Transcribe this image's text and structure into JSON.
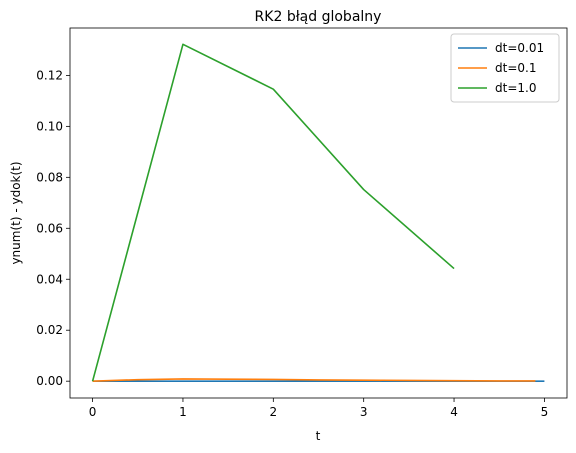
{
  "chart_data": {
    "type": "line",
    "title": "RK2 błąd globalny",
    "xlabel": "t",
    "ylabel": "ynum(t) - ydok(t)",
    "xlim": [
      -0.25,
      5.25
    ],
    "ylim": [
      -0.0066,
      0.1386
    ],
    "x_ticks": [
      0,
      1,
      2,
      3,
      4,
      5
    ],
    "x_tick_labels": [
      "0",
      "1",
      "2",
      "3",
      "4",
      "5"
    ],
    "y_ticks": [
      0.0,
      0.02,
      0.04,
      0.06,
      0.08,
      0.1,
      0.12
    ],
    "y_tick_labels": [
      "0.00",
      "0.02",
      "0.04",
      "0.06",
      "0.08",
      "0.10",
      "0.12"
    ],
    "grid": false,
    "legend_position": "upper right",
    "series": [
      {
        "name": "dt=0.01",
        "color": "#1f77b4",
        "x": [
          0,
          0.5,
          1,
          1.5,
          2,
          2.5,
          3,
          3.5,
          4,
          4.5,
          5
        ],
        "y": [
          0,
          5e-06,
          8e-06,
          8e-06,
          7e-06,
          6e-06,
          4e-06,
          3e-06,
          2e-06,
          2e-06,
          1e-06
        ]
      },
      {
        "name": "dt=0.1",
        "color": "#ff7f0e",
        "x": [
          0,
          0.5,
          1,
          1.5,
          2,
          2.5,
          3,
          3.5,
          4,
          4.5,
          4.9
        ],
        "y": [
          0,
          0.0006,
          0.0009,
          0.0008,
          0.0007,
          0.0005,
          0.0004,
          0.0003,
          0.0002,
          0.0001,
          0.0001
        ]
      },
      {
        "name": "dt=1.0",
        "color": "#2ca02c",
        "x": [
          0,
          1,
          2,
          3,
          4
        ],
        "y": [
          0,
          0.1322,
          0.1146,
          0.0752,
          0.0442
        ]
      }
    ]
  }
}
